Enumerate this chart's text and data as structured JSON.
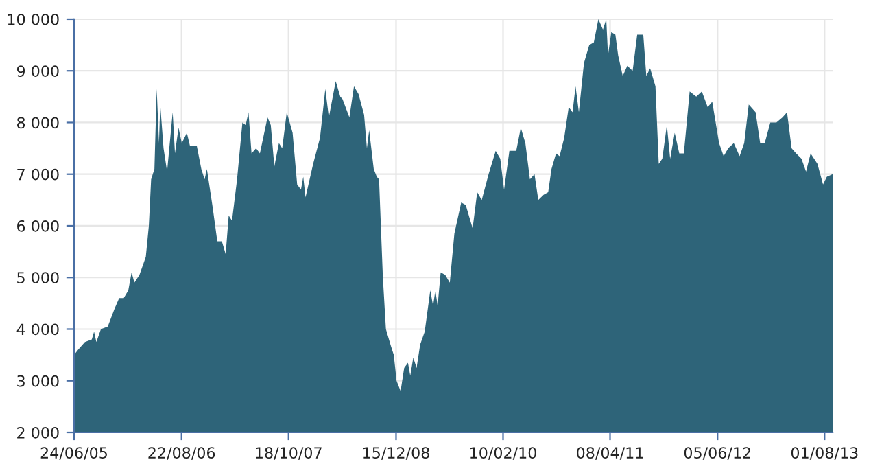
{
  "chart_data": {
    "type": "area",
    "color": "#2e6479",
    "grid": true,
    "legend": false,
    "xlim": [
      "2005-06-24",
      "2013-09-02"
    ],
    "ylim": [
      2000,
      10000
    ],
    "xticks": [
      {
        "value": "2005-06-24",
        "label": "24/06/05"
      },
      {
        "value": "2006-08-22",
        "label": "22/08/06"
      },
      {
        "value": "2007-10-18",
        "label": "18/10/07"
      },
      {
        "value": "2008-12-15",
        "label": "15/12/08"
      },
      {
        "value": "2010-02-10",
        "label": "10/02/10"
      },
      {
        "value": "2011-04-08",
        "label": "08/04/11"
      },
      {
        "value": "2012-06-05",
        "label": "05/06/12"
      },
      {
        "value": "2013-08-01",
        "label": "01/08/13"
      }
    ],
    "yticks": [
      {
        "value": 2000,
        "label": "2 000"
      },
      {
        "value": 3000,
        "label": "3 000"
      },
      {
        "value": 4000,
        "label": "4 000"
      },
      {
        "value": 5000,
        "label": "5 000"
      },
      {
        "value": 6000,
        "label": "6 000"
      },
      {
        "value": 7000,
        "label": "7 000"
      },
      {
        "value": 8000,
        "label": "8 000"
      },
      {
        "value": 9000,
        "label": "9 000"
      },
      {
        "value": 10000,
        "label": "10 000"
      }
    ],
    "x": [
      "2005-06-24",
      "2005-07-10",
      "2005-08-06",
      "2005-09-02",
      "2005-09-11",
      "2005-09-20",
      "2005-10-08",
      "2005-11-04",
      "2005-12-01",
      "2005-12-19",
      "2006-01-06",
      "2006-01-24",
      "2006-02-06",
      "2006-02-17",
      "2006-03-09",
      "2006-04-03",
      "2006-04-15",
      "2006-04-24",
      "2006-05-07",
      "2006-05-16",
      "2006-05-25",
      "2006-05-30",
      "2006-06-12",
      "2006-06-26",
      "2006-07-18",
      "2006-07-27",
      "2006-08-10",
      "2006-08-23",
      "2006-09-12",
      "2006-09-24",
      "2006-10-21",
      "2006-11-08",
      "2006-11-21",
      "2006-11-30",
      "2006-12-23",
      "2007-01-10",
      "2007-01-28",
      "2007-02-12",
      "2007-02-24",
      "2007-03-09",
      "2007-03-29",
      "2007-04-19",
      "2007-05-02",
      "2007-05-13",
      "2007-05-25",
      "2007-06-12",
      "2007-06-27",
      "2007-07-27",
      "2007-08-09",
      "2007-08-23",
      "2007-09-10",
      "2007-09-23",
      "2007-10-11",
      "2007-11-03",
      "2007-11-21",
      "2007-12-06",
      "2007-12-15",
      "2007-12-24",
      "2008-01-23",
      "2008-02-19",
      "2008-03-11",
      "2008-03-25",
      "2008-04-21",
      "2008-05-09",
      "2008-05-18",
      "2008-06-14",
      "2008-07-02",
      "2008-07-20",
      "2008-08-11",
      "2008-08-22",
      "2008-08-31",
      "2008-09-18",
      "2008-09-30",
      "2008-10-09",
      "2008-10-24",
      "2008-11-05",
      "2008-11-23",
      "2008-12-06",
      "2008-12-17",
      "2009-01-02",
      "2009-01-16",
      "2009-01-31",
      "2009-02-09",
      "2009-02-21",
      "2009-03-06",
      "2009-03-20",
      "2009-04-07",
      "2009-04-29",
      "2009-05-10",
      "2009-05-19",
      "2009-05-28",
      "2009-06-09",
      "2009-06-27",
      "2009-07-15",
      "2009-08-02",
      "2009-08-29",
      "2009-09-16",
      "2009-10-13",
      "2009-10-31",
      "2009-11-18",
      "2009-12-15",
      "2010-01-12",
      "2010-01-30",
      "2010-02-14",
      "2010-03-07",
      "2010-04-03",
      "2010-04-21",
      "2010-05-09",
      "2010-05-27",
      "2010-06-14",
      "2010-06-29",
      "2010-07-20",
      "2010-08-07",
      "2010-08-20",
      "2010-09-07",
      "2010-09-21",
      "2010-10-09",
      "2010-10-27",
      "2010-11-11",
      "2010-11-23",
      "2010-12-06",
      "2010-12-26",
      "2011-01-16",
      "2011-02-03",
      "2011-02-21",
      "2011-03-11",
      "2011-03-24",
      "2011-03-31",
      "2011-04-13",
      "2011-04-29",
      "2011-05-10",
      "2011-05-28",
      "2011-06-15",
      "2011-07-06",
      "2011-07-24",
      "2011-08-17",
      "2011-08-29",
      "2011-09-13",
      "2011-10-04",
      "2011-10-17",
      "2011-10-31",
      "2011-11-18",
      "2011-12-01",
      "2011-12-19",
      "2012-01-06",
      "2012-01-24",
      "2012-02-16",
      "2012-03-13",
      "2012-04-04",
      "2012-04-27",
      "2012-05-15",
      "2012-06-11",
      "2012-06-29",
      "2012-07-17",
      "2012-08-08",
      "2012-08-31",
      "2012-09-18",
      "2012-10-06",
      "2012-11-02",
      "2012-11-20",
      "2012-12-08",
      "2012-12-30",
      "2013-01-23",
      "2013-02-16",
      "2013-03-06",
      "2013-03-24",
      "2013-04-11",
      "2013-05-02",
      "2013-05-20",
      "2013-06-07",
      "2013-07-04",
      "2013-07-26",
      "2013-08-10",
      "2013-09-02"
    ],
    "values": [
      3500,
      3600,
      3750,
      3800,
      3950,
      3750,
      4000,
      4050,
      4400,
      4600,
      4600,
      4750,
      5100,
      4900,
      5050,
      5400,
      6000,
      6900,
      7100,
      8650,
      7600,
      8350,
      7500,
      7050,
      8200,
      7400,
      7900,
      7600,
      7800,
      7550,
      7550,
      7100,
      6900,
      7100,
      6350,
      5700,
      5700,
      5450,
      6200,
      6100,
      6900,
      8000,
      7950,
      8200,
      7400,
      7500,
      7400,
      8100,
      7950,
      7150,
      7600,
      7500,
      8200,
      7800,
      6800,
      6700,
      6950,
      6550,
      7200,
      7700,
      8650,
      8100,
      8800,
      8500,
      8450,
      8100,
      8700,
      8550,
      8150,
      7500,
      7850,
      7100,
      6950,
      6900,
      5000,
      4000,
      3700,
      3500,
      3000,
      2800,
      3250,
      3350,
      3100,
      3450,
      3250,
      3700,
      3950,
      4750,
      4450,
      4750,
      4450,
      5100,
      5050,
      4900,
      5850,
      6450,
      6400,
      5950,
      6650,
      6500,
      7000,
      7450,
      7300,
      6700,
      7450,
      7450,
      7900,
      7600,
      6900,
      7000,
      6500,
      6600,
      6650,
      7100,
      7400,
      7350,
      7700,
      8300,
      8200,
      8700,
      8200,
      9150,
      9500,
      9550,
      10000,
      9800,
      10000,
      9300,
      9750,
      9700,
      9300,
      8900,
      9100,
      9000,
      9700,
      9700,
      8900,
      9050,
      8700,
      7200,
      7300,
      7950,
      7300,
      7800,
      7400,
      7400,
      8600,
      8500,
      8600,
      8300,
      8400,
      7600,
      7350,
      7500,
      7600,
      7350,
      7600,
      8350,
      8200,
      7600,
      7600,
      8000,
      8000,
      8100,
      8200,
      7500,
      7400,
      7300,
      7050,
      7400,
      7200,
      6800,
      6950,
      7000
    ]
  }
}
